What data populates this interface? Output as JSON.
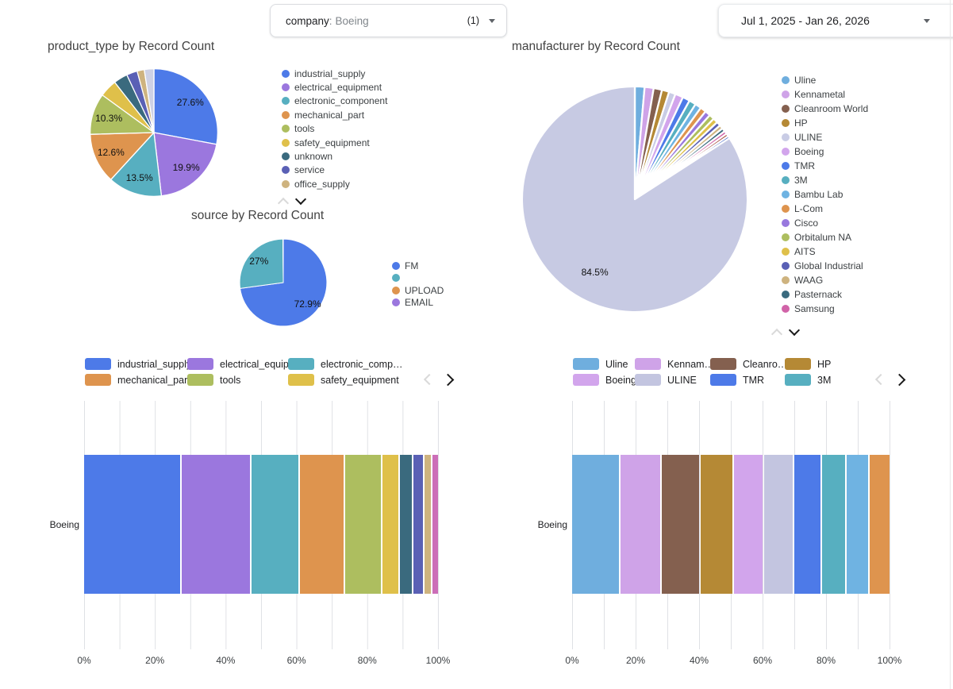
{
  "toolbar": {
    "filter_chip": {
      "label": "company",
      "separator": ":",
      "value": "Boeing",
      "count": "(1)"
    },
    "date_range": "Jul 1, 2025 - Jan 26, 2026"
  },
  "chart_data": [
    {
      "id": "product_type_pie",
      "type": "pie",
      "title": "product_type by Record Count",
      "slices": [
        {
          "label": "industrial_supply",
          "value": 27.6,
          "color": "#4D7AE8",
          "pct_label": "27.6%"
        },
        {
          "label": "electrical_equipment",
          "value": 19.9,
          "color": "#9B77DE",
          "pct_label": "19.9%"
        },
        {
          "label": "electronic_component",
          "value": 13.5,
          "color": "#57AFC0",
          "pct_label": "13.5%"
        },
        {
          "label": "mechanical_part",
          "value": 12.6,
          "color": "#DE944E",
          "pct_label": "12.6%"
        },
        {
          "label": "tools",
          "value": 10.3,
          "color": "#ADBE5F",
          "pct_label": "10.3%"
        },
        {
          "label": "safety_equipment",
          "value": 4.4,
          "color": "#DFC04A"
        },
        {
          "label": "unknown",
          "value": 3.5,
          "color": "#3A6A7E"
        },
        {
          "label": "service",
          "value": 2.7,
          "color": "#5A60B5"
        },
        {
          "label": "office_supply",
          "value": 1.8,
          "color": "#CEB37F"
        },
        {
          "label": "",
          "value": 2.4,
          "color": "#CDD1E5"
        }
      ],
      "legend": [
        {
          "label": "industrial_supply",
          "color": "#4D7AE8"
        },
        {
          "label": "electrical_equipment",
          "color": "#9B77DE"
        },
        {
          "label": "electronic_component",
          "color": "#57AFC0"
        },
        {
          "label": "mechanical_part",
          "color": "#DE944E"
        },
        {
          "label": "tools",
          "color": "#ADBE5F"
        },
        {
          "label": "safety_equipment",
          "color": "#DFC04A"
        },
        {
          "label": "unknown",
          "color": "#3A6A7E"
        },
        {
          "label": "service",
          "color": "#5A60B5"
        },
        {
          "label": "office_supply",
          "color": "#CEB37F"
        }
      ]
    },
    {
      "id": "manufacturer_pie",
      "type": "pie",
      "title": "manufacturer by Record Count",
      "slices": [
        {
          "label": "Uline",
          "value": 1.4,
          "color": "#6FAEDE"
        },
        {
          "label": "Kennametal",
          "value": 1.3,
          "color": "#CFA3E8"
        },
        {
          "label": "Cleanroom World",
          "value": 1.2,
          "color": "#84604F"
        },
        {
          "label": "HP",
          "value": 1.05,
          "color": "#B58935"
        },
        {
          "label": "ULINE",
          "value": 0.95,
          "color": "#C9CCE5"
        },
        {
          "label": "Boeing",
          "value": 1.15,
          "color": "#D2A5EC"
        },
        {
          "label": "TMR",
          "value": 1.05,
          "color": "#4D7AE8"
        },
        {
          "label": "3M",
          "value": 1.0,
          "color": "#57AFC0"
        },
        {
          "label": "Bambu Lab",
          "value": 0.9,
          "color": "#6FB3E2"
        },
        {
          "label": "L-Com",
          "value": 0.85,
          "color": "#DE944E"
        },
        {
          "label": "Cisco",
          "value": 0.8,
          "color": "#9878DE"
        },
        {
          "label": "Orbitalum NA",
          "value": 0.75,
          "color": "#ADBE5F"
        },
        {
          "label": "AITS",
          "value": 0.7,
          "color": "#DFC04A"
        },
        {
          "label": "Global Industrial",
          "value": 0.6,
          "color": "#5A60B5"
        },
        {
          "label": "WAAG",
          "value": 0.55,
          "color": "#CEB37F"
        },
        {
          "label": "Pasternack",
          "value": 0.5,
          "color": "#3A6A7E"
        },
        {
          "label": "Samsung",
          "value": 0.45,
          "color": "#D163A8"
        },
        {
          "label": "",
          "value": 0.4,
          "color": "#A44A3C"
        },
        {
          "label": "",
          "value": 0.35,
          "color": "#4466C8"
        },
        {
          "label": "",
          "value": 84.5,
          "color": "#C7CAE3",
          "pct_label": "84.5%"
        }
      ],
      "legend": [
        {
          "label": "Uline",
          "color": "#6FAEDE"
        },
        {
          "label": "Kennametal",
          "color": "#CFA3E8"
        },
        {
          "label": "Cleanroom World",
          "color": "#84604F"
        },
        {
          "label": "HP",
          "color": "#B58935"
        },
        {
          "label": "ULINE",
          "color": "#C9CCE5"
        },
        {
          "label": "Boeing",
          "color": "#D2A5EC"
        },
        {
          "label": "TMR",
          "color": "#4D7AE8"
        },
        {
          "label": "3M",
          "color": "#57AFC0"
        },
        {
          "label": "Bambu Lab",
          "color": "#6FB3E2"
        },
        {
          "label": "L-Com",
          "color": "#DE944E"
        },
        {
          "label": "Cisco",
          "color": "#9878DE"
        },
        {
          "label": "Orbitalum NA",
          "color": "#ADBE5F"
        },
        {
          "label": "AITS",
          "color": "#DFC04A"
        },
        {
          "label": "Global Industrial",
          "color": "#5A60B5"
        },
        {
          "label": "WAAG",
          "color": "#CEB37F"
        },
        {
          "label": "Pasternack",
          "color": "#3A6A7E"
        },
        {
          "label": "Samsung",
          "color": "#D163A8"
        }
      ]
    },
    {
      "id": "source_pie",
      "type": "pie",
      "title": "source by Record Count",
      "slices": [
        {
          "label": "FM",
          "value": 72.9,
          "color": "#4D7AE8",
          "pct_label": "72.9%"
        },
        {
          "label": "",
          "value": 27.0,
          "color": "#57AFC0",
          "pct_label": "27%"
        },
        {
          "label": "UPLOAD",
          "value": 0.08,
          "color": "#DE944E"
        },
        {
          "label": "EMAIL",
          "value": 0.08,
          "color": "#9B77DE"
        }
      ],
      "legend": [
        {
          "label": "FM",
          "color": "#4D7AE8"
        },
        {
          "label": "",
          "color": "#57AFC0"
        },
        {
          "label": "UPLOAD",
          "color": "#DE944E"
        },
        {
          "label": "EMAIL",
          "color": "#9B77DE"
        }
      ]
    },
    {
      "id": "product_type_bar",
      "type": "bar",
      "orientation": "horizontal-stacked-100pct",
      "categories": [
        "Boeing"
      ],
      "series": [
        {
          "name": "industrial_supply",
          "value": 27.6,
          "color": "#4D7AE8"
        },
        {
          "name": "electrical_equipment",
          "value": 19.9,
          "color": "#9B77DE"
        },
        {
          "name": "electronic_component",
          "value": 13.5,
          "color": "#57AFC0"
        },
        {
          "name": "mechanical_part",
          "value": 12.6,
          "color": "#DE944E"
        },
        {
          "name": "tools",
          "value": 10.3,
          "color": "#ADBE5F"
        },
        {
          "name": "safety_equipment",
          "value": 4.4,
          "color": "#DFC04A"
        },
        {
          "name": "unknown",
          "value": 3.5,
          "color": "#3A6A7E"
        },
        {
          "name": "service",
          "value": 2.7,
          "color": "#5A60B5"
        },
        {
          "name": "office_supply",
          "value": 1.8,
          "color": "#CEB37F"
        },
        {
          "name": "",
          "value": 1.7,
          "color": "#CC6EB8"
        }
      ],
      "x_ticks": [
        "0%",
        "20%",
        "40%",
        "60%",
        "80%",
        "100%"
      ],
      "legend": [
        {
          "label": "industrial_supply",
          "color": "#4D7AE8"
        },
        {
          "label": "electrical_equipm…",
          "color": "#9B77DE"
        },
        {
          "label": "electronic_comp…",
          "color": "#57AFC0"
        },
        {
          "label": "mechanical_part",
          "color": "#DE944E"
        },
        {
          "label": "tools",
          "color": "#ADBE5F"
        },
        {
          "label": "safety_equipment",
          "color": "#DFC04A"
        }
      ]
    },
    {
      "id": "manufacturer_bar",
      "type": "bar",
      "orientation": "horizontal-stacked-100pct",
      "categories": [
        "Boeing"
      ],
      "series": [
        {
          "name": "Uline",
          "value": 15.5,
          "color": "#6FAEDE"
        },
        {
          "name": "Kennametal",
          "value": 13.0,
          "color": "#CFA3E8"
        },
        {
          "name": "Cleanroom World",
          "value": 12.4,
          "color": "#84604F"
        },
        {
          "name": "HP",
          "value": 10.3,
          "color": "#B58935"
        },
        {
          "name": "Boeing",
          "value": 9.5,
          "color": "#D2A5EC"
        },
        {
          "name": "ULINE",
          "value": 9.5,
          "color": "#C3C5E0"
        },
        {
          "name": "TMR",
          "value": 8.5,
          "color": "#4D7AE8"
        },
        {
          "name": "3M",
          "value": 7.7,
          "color": "#57AFC0"
        },
        {
          "name": "Bambu Lab",
          "value": 7.0,
          "color": "#6FB3E2"
        },
        {
          "name": "L-Com",
          "value": 6.6,
          "color": "#DE944E"
        }
      ],
      "x_ticks": [
        "0%",
        "20%",
        "40%",
        "60%",
        "80%",
        "100%"
      ],
      "legend": [
        {
          "label": "Uline",
          "color": "#6FAEDE"
        },
        {
          "label": "Kennam…",
          "color": "#CFA3E8"
        },
        {
          "label": "Cleanro…",
          "color": "#84604F"
        },
        {
          "label": "HP",
          "color": "#B58935"
        },
        {
          "label": "Boeing",
          "color": "#D2A5EC"
        },
        {
          "label": "ULINE",
          "color": "#C3C5E0"
        },
        {
          "label": "TMR",
          "color": "#4D7AE8"
        },
        {
          "label": "3M",
          "color": "#57AFC0"
        }
      ]
    }
  ]
}
